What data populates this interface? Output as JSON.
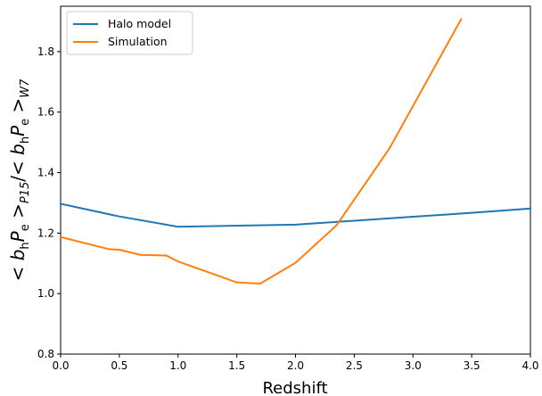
{
  "chart_data": {
    "type": "line",
    "xlabel": "Redshift",
    "ylabel_parts": {
      "open": "< ",
      "b": "b",
      "b_sub": "h",
      "p": "P",
      "p_sub": "e",
      "close1": " >",
      "label1": "P15",
      "slash": "/< ",
      "close2": " >",
      "label2": "W7"
    },
    "xlim": [
      0.0,
      4.0
    ],
    "ylim": [
      0.8,
      1.95
    ],
    "xticks": [
      "0.0",
      "0.5",
      "1.0",
      "1.5",
      "2.0",
      "2.5",
      "3.0",
      "3.5",
      "4.0"
    ],
    "yticks": [
      "0.8",
      "1.0",
      "1.2",
      "1.4",
      "1.6",
      "1.8"
    ],
    "legend_position": "upper-left",
    "series": [
      {
        "name": "Halo model",
        "color": "#1f77b4",
        "x": [
          0.0,
          0.5,
          1.0,
          2.0,
          2.5,
          3.0,
          3.5,
          4.0
        ],
        "y": [
          1.297,
          1.255,
          1.221,
          1.228,
          1.241,
          1.254,
          1.267,
          1.281
        ]
      },
      {
        "name": "Simulation",
        "color": "#ff7f0e",
        "x": [
          0.0,
          0.41,
          0.5,
          0.68,
          0.9,
          1.0,
          1.5,
          1.7,
          2.0,
          2.35,
          2.8,
          3.41
        ],
        "y": [
          1.187,
          1.147,
          1.145,
          1.128,
          1.126,
          1.106,
          1.037,
          1.033,
          1.102,
          1.226,
          1.48,
          1.907
        ]
      }
    ]
  }
}
